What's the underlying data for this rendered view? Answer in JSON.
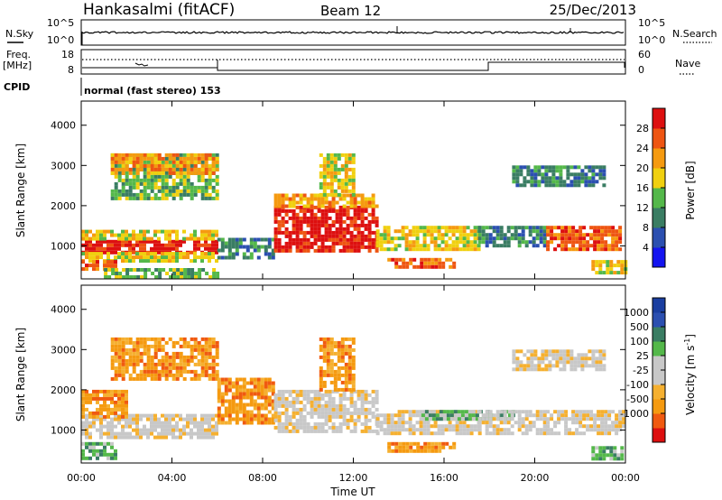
{
  "header": {
    "station": "Hankasalmi (fitACF)",
    "beam": "Beam 12",
    "date": "25/Dec/2013"
  },
  "status_panels": {
    "nsky_label": "N.Sky",
    "nsearch_label": "N.Search",
    "sky_ticks": [
      "10^5",
      "10^0"
    ],
    "search_ticks": [
      "10^5",
      "10^0"
    ],
    "freq_label_1": "Freq.",
    "freq_label_2": "[MHz]",
    "freq_ticks": [
      "18",
      "8"
    ],
    "nave_label": "Nave",
    "nave_ticks": [
      "60",
      "0"
    ],
    "cpid_label": "CPID",
    "cpid_value": "normal (fast stereo) 153"
  },
  "axes": {
    "ylabel": "Slant Range [km]",
    "xlabel": "Time UT",
    "y_ticks": [
      1000,
      2000,
      3000,
      4000
    ],
    "x_ticks": [
      "00:00",
      "04:00",
      "08:00",
      "12:00",
      "16:00",
      "20:00",
      "00:00"
    ]
  },
  "colors": {
    "power": [
      "#1414f0",
      "#2b4fb0",
      "#3a7d63",
      "#54b84a",
      "#f0d010",
      "#f59a10",
      "#ee5512",
      "#dd1010"
    ],
    "velocity": [
      "#dd0f0f",
      "#f05a10",
      "#f59a10",
      "#f5b030",
      "#c8c8c8",
      "#c8c8c8",
      "#54b84a",
      "#3a7d63",
      "#2b4fb0",
      "#1a3ea0"
    ]
  },
  "power_colorbar": {
    "label": "Power [dB]",
    "ticks": [
      "28",
      "24",
      "20",
      "16",
      "12",
      "8",
      "4"
    ]
  },
  "velocity_colorbar": {
    "label": "Velocity [m s",
    "label_sup": "-1",
    "label_end": "]",
    "ticks": [
      "1000",
      "500",
      "100",
      "25",
      "-25",
      "-100",
      "-500",
      "-1000"
    ]
  },
  "chart_data": [
    {
      "type": "heatmap",
      "title": "Power",
      "xlabel": "Time UT",
      "ylabel": "Slant Range [km]",
      "xlim": [
        0,
        24
      ],
      "ylim": [
        180,
        4600
      ],
      "regions": [
        {
          "t": [
            0.0,
            6.0
          ],
          "r": [
            850,
            1150
          ],
          "level": 7
        },
        {
          "t": [
            0.0,
            6.0
          ],
          "r": [
            1150,
            1400
          ],
          "level": 4
        },
        {
          "t": [
            0.0,
            6.0
          ],
          "r": [
            650,
            850
          ],
          "level": 4
        },
        {
          "t": [
            0.0,
            1.5
          ],
          "r": [
            400,
            650
          ],
          "level": 6
        },
        {
          "t": [
            1.0,
            6.0
          ],
          "r": [
            250,
            450
          ],
          "level": 3
        },
        {
          "t": [
            1.3,
            6.0
          ],
          "r": [
            2200,
            3300
          ],
          "level": 3
        },
        {
          "t": [
            1.3,
            6.0
          ],
          "r": [
            2800,
            3300
          ],
          "level": 5
        },
        {
          "t": [
            6.0,
            8.5
          ],
          "r": [
            700,
            1200
          ],
          "level": 2
        },
        {
          "t": [
            8.5,
            13.0
          ],
          "r": [
            900,
            2000
          ],
          "level": 7
        },
        {
          "t": [
            8.5,
            13.0
          ],
          "r": [
            2000,
            2300
          ],
          "level": 5
        },
        {
          "t": [
            10.5,
            12.0
          ],
          "r": [
            2300,
            3300
          ],
          "level": 4
        },
        {
          "t": [
            13.0,
            17.5
          ],
          "r": [
            900,
            1500
          ],
          "level": 4
        },
        {
          "t": [
            13.5,
            16.5
          ],
          "r": [
            450,
            700
          ],
          "level": 6
        },
        {
          "t": [
            17.5,
            20.5
          ],
          "r": [
            1000,
            1500
          ],
          "level": 2
        },
        {
          "t": [
            19.0,
            23.0
          ],
          "r": [
            2500,
            3000
          ],
          "level": 2
        },
        {
          "t": [
            20.5,
            23.8
          ],
          "r": [
            900,
            1500
          ],
          "level": 6
        },
        {
          "t": [
            22.5,
            24.0
          ],
          "r": [
            350,
            650
          ],
          "level": 4
        }
      ]
    },
    {
      "type": "heatmap",
      "title": "Velocity",
      "xlabel": "Time UT",
      "ylabel": "Slant Range [km]",
      "xlim": [
        0,
        24
      ],
      "ylim": [
        180,
        4600
      ],
      "regions": [
        {
          "t": [
            0.0,
            6.0
          ],
          "r": [
            800,
            1400
          ],
          "level": 4
        },
        {
          "t": [
            0.0,
            2.0
          ],
          "r": [
            1300,
            2000
          ],
          "level": 2
        },
        {
          "t": [
            0.0,
            1.5
          ],
          "r": [
            300,
            700
          ],
          "level": 6
        },
        {
          "t": [
            1.3,
            6.0
          ],
          "r": [
            2300,
            3300
          ],
          "level": 2
        },
        {
          "t": [
            6.0,
            8.5
          ],
          "r": [
            1200,
            2300
          ],
          "level": 2
        },
        {
          "t": [
            8.5,
            13.0
          ],
          "r": [
            1000,
            2000
          ],
          "level": 4
        },
        {
          "t": [
            10.5,
            12.0
          ],
          "r": [
            2000,
            3300
          ],
          "level": 2
        },
        {
          "t": [
            13.0,
            17.5
          ],
          "r": [
            900,
            1500
          ],
          "level": 4
        },
        {
          "t": [
            13.5,
            16.5
          ],
          "r": [
            450,
            700
          ],
          "level": 2
        },
        {
          "t": [
            15.0,
            19.0
          ],
          "r": [
            1300,
            1500
          ],
          "level": 6
        },
        {
          "t": [
            17.5,
            20.5
          ],
          "r": [
            900,
            1500
          ],
          "level": 4
        },
        {
          "t": [
            19.0,
            23.0
          ],
          "r": [
            2500,
            3000
          ],
          "level": 4
        },
        {
          "t": [
            20.5,
            24.0
          ],
          "r": [
            900,
            1500
          ],
          "level": 4
        },
        {
          "t": [
            22.5,
            24.0
          ],
          "r": [
            300,
            600
          ],
          "level": 6
        }
      ]
    }
  ]
}
